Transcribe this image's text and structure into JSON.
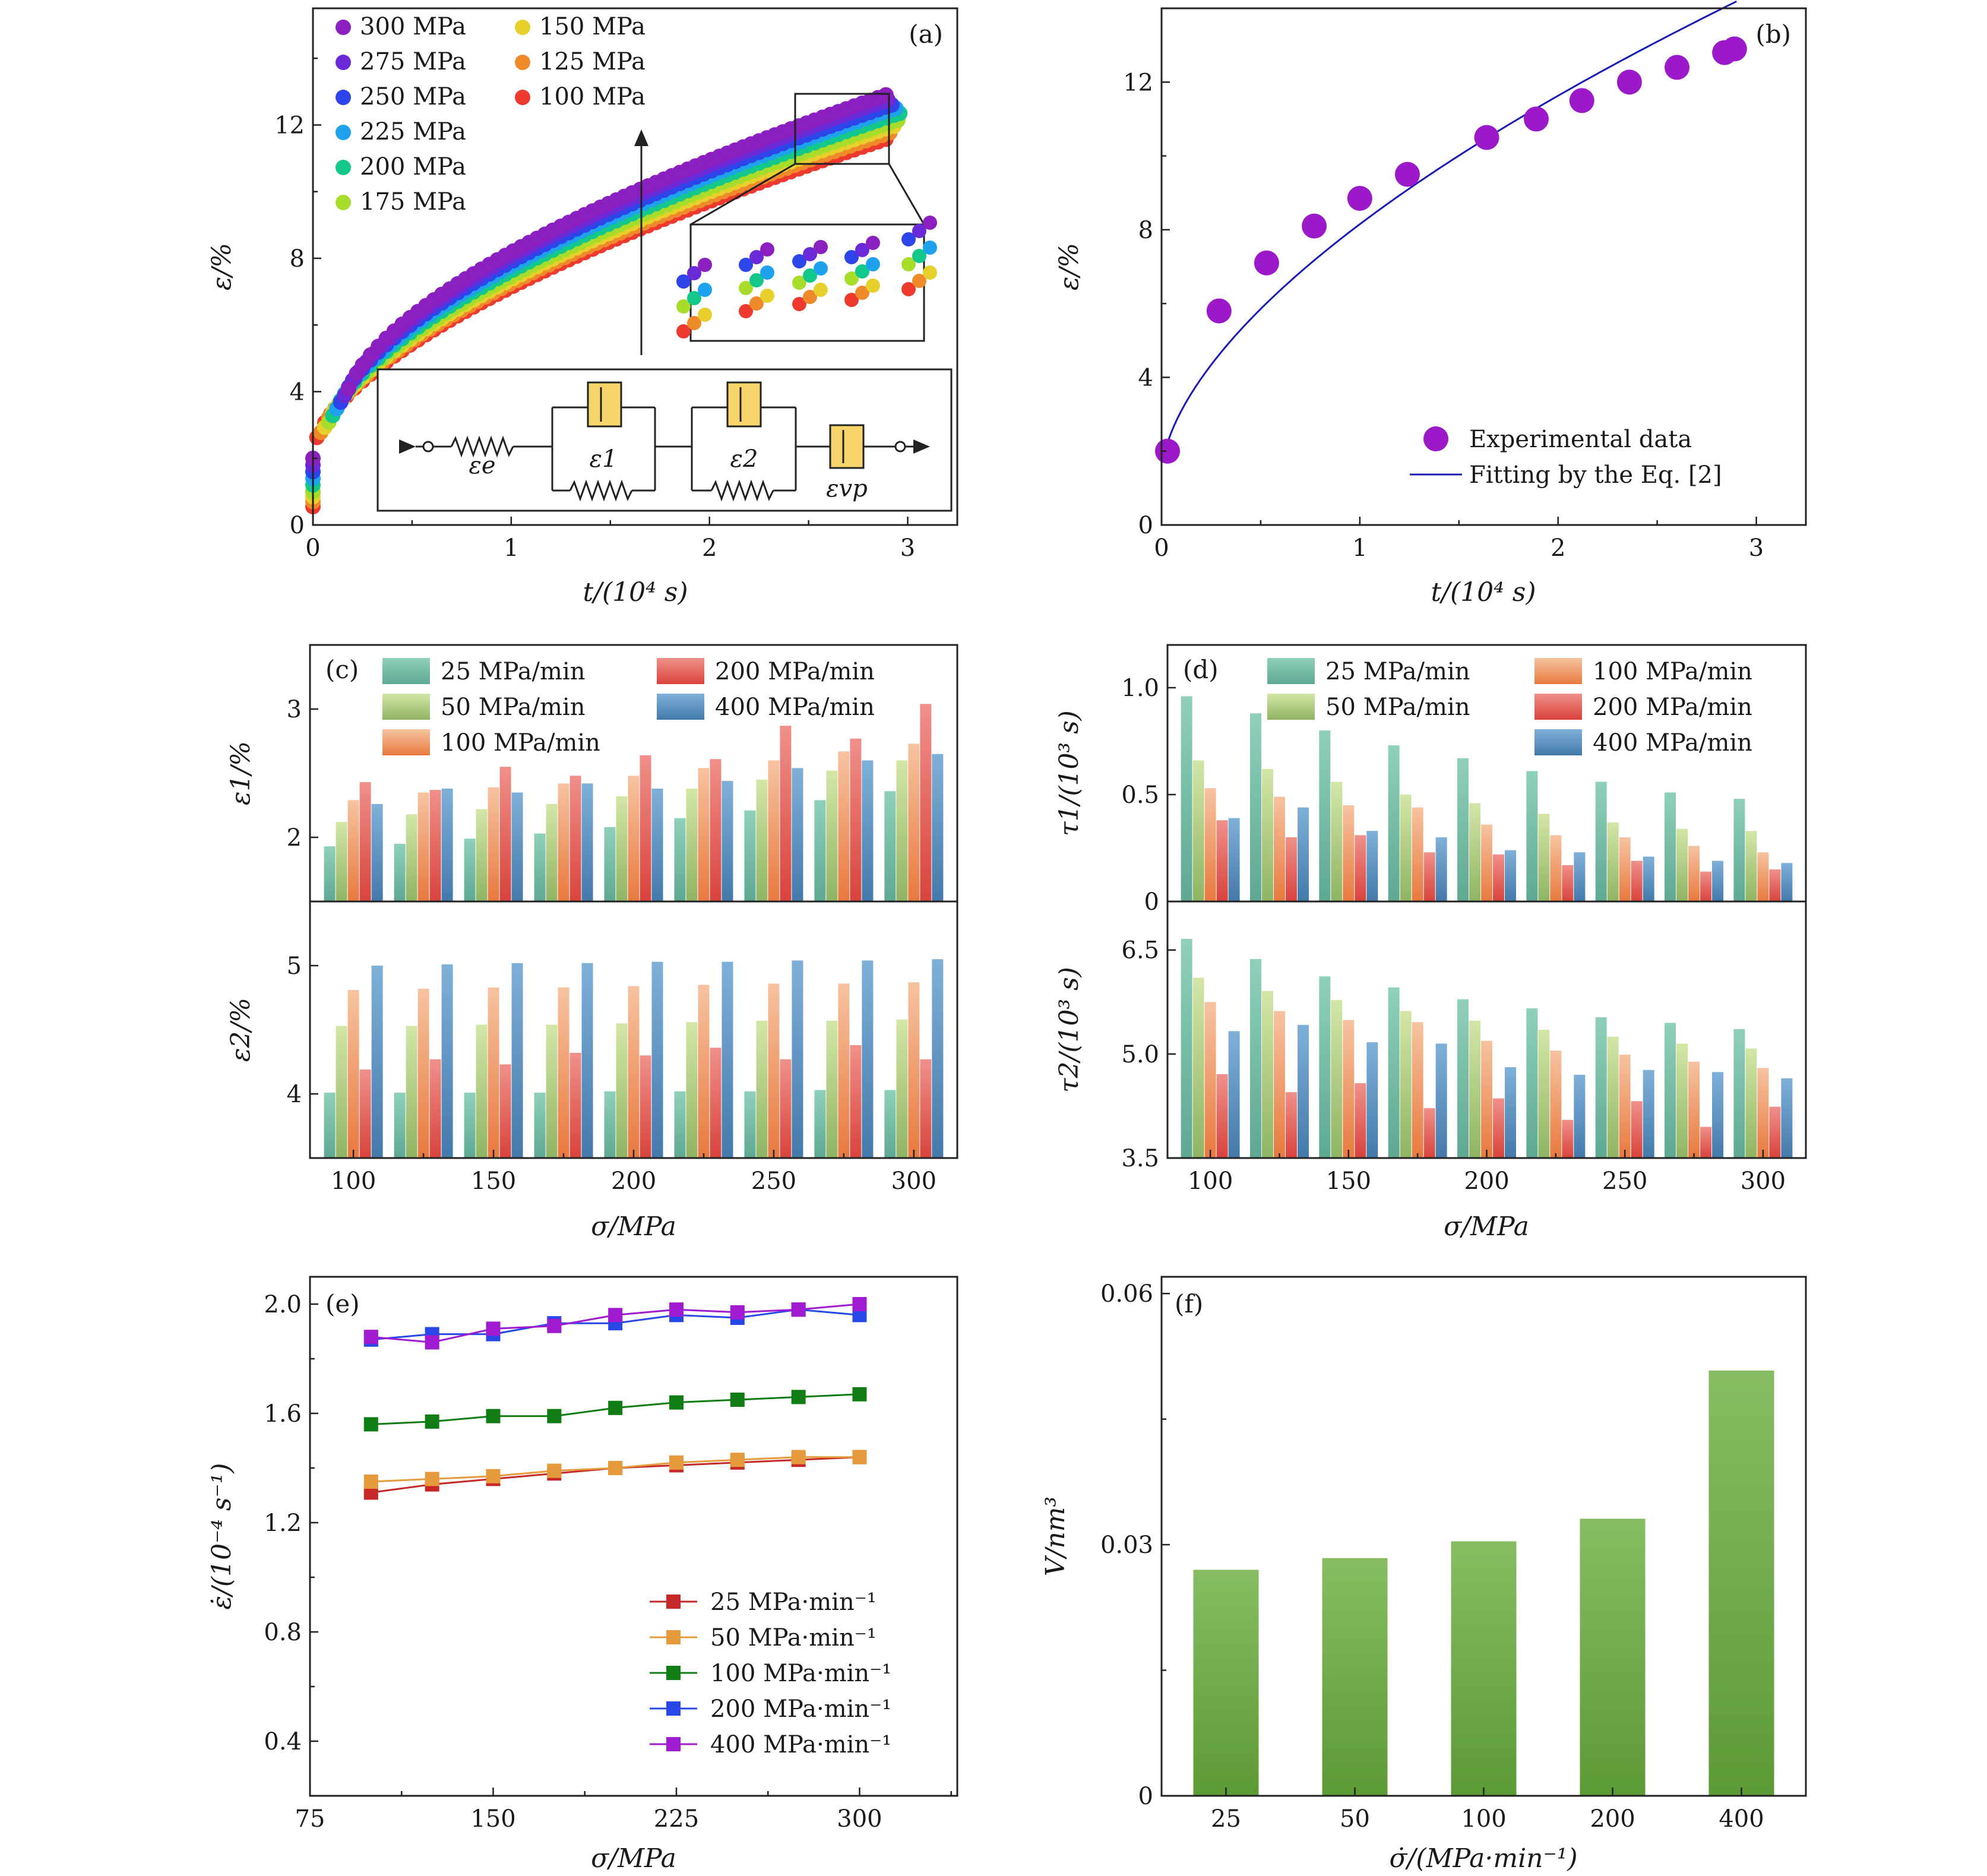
{
  "panels": {
    "a": {
      "tag": "(a)",
      "xlabel": "t/(10⁴ s)",
      "ylabel": "ε/%",
      "xticks": [
        "0",
        "1",
        "2",
        "3"
      ],
      "yticks": [
        "0",
        "4",
        "8",
        "12"
      ],
      "model": {
        "labels": [
          "εe",
          "ε1",
          "ε2",
          "εvp"
        ]
      }
    },
    "b": {
      "tag": "(b)",
      "xlabel": "t/(10⁴ s)",
      "ylabel": "ε/%",
      "xticks": [
        "0",
        "1",
        "2",
        "3"
      ],
      "yticks": [
        "0",
        "4",
        "8",
        "12"
      ],
      "legend": [
        "Experimental data",
        "Fitting by the Eq. [2]"
      ]
    },
    "c": {
      "tag": "(c)",
      "xlabel": "σ/MPa",
      "ylabel_top": "ε1/%",
      "ylabel_bottom": "ε2/%",
      "xticks": [
        "100",
        "150",
        "200",
        "250",
        "300"
      ],
      "yticks_top": [
        "2",
        "3"
      ],
      "yticks_bottom": [
        "4",
        "5"
      ]
    },
    "d": {
      "tag": "(d)",
      "xlabel": "σ/MPa",
      "ylabel_top": "τ1/(10³ s)",
      "ylabel_bottom": "τ2/(10³ s)",
      "xticks": [
        "100",
        "150",
        "200",
        "250",
        "300"
      ],
      "yticks_top": [
        "0",
        "0.5",
        "1.0"
      ],
      "yticks_bottom": [
        "3.5",
        "5.0",
        "6.5"
      ]
    },
    "e": {
      "tag": "(e)",
      "xlabel": "σ/MPa",
      "ylabel": "ε̇/(10⁻⁴ s⁻¹)",
      "xticks": [
        "75",
        "150",
        "225",
        "300"
      ],
      "yticks": [
        "0.4",
        "0.8",
        "1.2",
        "1.6",
        "2.0"
      ],
      "legend": [
        "25 MPa·min⁻¹",
        "50 MPa·min⁻¹",
        "100 MPa·min⁻¹",
        "200 MPa·min⁻¹",
        "400 MPa·min⁻¹"
      ]
    },
    "f": {
      "tag": "(f)",
      "xlabel": "σ̇/(MPa·min⁻¹)",
      "ylabel": "V/nm³",
      "yticks": [
        "0",
        "0.03",
        "0.06"
      ]
    }
  },
  "chart_data": [
    {
      "panel": "a",
      "type": "scatter",
      "title": "",
      "xlabel": "t/(10⁴ s)",
      "ylabel": "ε/%",
      "xlim": [
        0,
        3.25
      ],
      "ylim": [
        0,
        15.5
      ],
      "series": [
        {
          "name": "300 MPa",
          "color": "#8b1fc0",
          "t_end": 2.89,
          "eps_start": 2.0,
          "eps_end": 12.9
        },
        {
          "name": "275 MPa",
          "color": "#6a2ad8",
          "t_end": 2.9,
          "eps_start": 1.8,
          "eps_end": 12.75
        },
        {
          "name": "250 MPa",
          "color": "#2c44e8",
          "t_end": 2.92,
          "eps_start": 1.6,
          "eps_end": 12.6
        },
        {
          "name": "225 MPa",
          "color": "#1fa2ee",
          "t_end": 2.94,
          "eps_start": 1.4,
          "eps_end": 12.5
        },
        {
          "name": "200 MPa",
          "color": "#14c78a",
          "t_end": 2.96,
          "eps_start": 1.2,
          "eps_end": 12.35
        },
        {
          "name": "175 MPa",
          "color": "#a7dd2a",
          "t_end": 2.98,
          "eps_start": 1.0,
          "eps_end": 12.2
        },
        {
          "name": "150 MPa",
          "color": "#e8d02c",
          "t_end": 3.0,
          "eps_start": 0.85,
          "eps_end": 12.1
        },
        {
          "name": "125 MPa",
          "color": "#ee8a2a",
          "t_end": 3.03,
          "eps_start": 0.7,
          "eps_end": 12.0
        },
        {
          "name": "100 MPa",
          "color": "#ee3a2e",
          "t_end": 3.06,
          "eps_start": 0.55,
          "eps_end": 11.9
        }
      ]
    },
    {
      "panel": "b",
      "type": "scatter",
      "xlim": [
        0,
        3.25
      ],
      "ylim": [
        0,
        14
      ],
      "series": [
        {
          "name": "Experimental data",
          "color": "#9b19c9",
          "x": [
            0.03,
            0.29,
            0.53,
            0.77,
            1.0,
            1.24,
            1.64,
            1.89,
            2.12,
            2.36,
            2.6,
            2.84,
            2.89
          ],
          "y": [
            2.0,
            5.8,
            7.1,
            8.1,
            8.85,
            9.5,
            10.5,
            11.0,
            11.5,
            12.0,
            12.4,
            12.8,
            12.9
          ]
        },
        {
          "name": "Fitting by the Eq. [2]",
          "color": "#1a1ab8",
          "type": "line",
          "model": "eps = 1.4 + 6.75*t^0.6",
          "x_range": [
            0.01,
            2.9
          ]
        }
      ]
    },
    {
      "panel": "c",
      "type": "bar",
      "categories": [
        100,
        125,
        150,
        175,
        200,
        225,
        250,
        275,
        300
      ],
      "rate_labels": [
        "25 MPa/min",
        "50 MPa/min",
        "100 MPa/min",
        "200 MPa/min",
        "400 MPa/min"
      ],
      "colors": [
        [
          "#8fd0bb",
          "#5ea893"
        ],
        [
          "#d3e6a6",
          "#8fb463"
        ],
        [
          "#f6c3a0",
          "#e8793e"
        ],
        [
          "#f0908a",
          "#d8433c"
        ],
        [
          "#7fb0d8",
          "#4379ab"
        ]
      ],
      "top": {
        "ylabel": "ε1/%",
        "ylim": [
          1.5,
          3.5
        ],
        "series": [
          [
            1.93,
            1.95,
            1.99,
            2.03,
            2.08,
            2.15,
            2.21,
            2.29,
            2.36
          ],
          [
            2.12,
            2.18,
            2.22,
            2.26,
            2.32,
            2.38,
            2.45,
            2.52,
            2.6
          ],
          [
            2.29,
            2.35,
            2.39,
            2.42,
            2.48,
            2.54,
            2.6,
            2.67,
            2.73
          ],
          [
            2.43,
            2.37,
            2.55,
            2.48,
            2.64,
            2.61,
            2.87,
            2.77,
            3.04
          ],
          [
            2.26,
            2.38,
            2.35,
            2.42,
            2.38,
            2.44,
            2.54,
            2.6,
            2.65
          ]
        ]
      },
      "bottom": {
        "ylabel": "ε2/%",
        "ylim": [
          3.5,
          5.5
        ],
        "series": [
          [
            4.01,
            4.01,
            4.01,
            4.01,
            4.02,
            4.02,
            4.02,
            4.03,
            4.03
          ],
          [
            4.53,
            4.53,
            4.54,
            4.54,
            4.55,
            4.56,
            4.57,
            4.57,
            4.58
          ],
          [
            4.81,
            4.82,
            4.83,
            4.83,
            4.84,
            4.85,
            4.86,
            4.86,
            4.87
          ],
          [
            4.19,
            4.27,
            4.23,
            4.32,
            4.3,
            4.36,
            4.27,
            4.38,
            4.27
          ],
          [
            5.0,
            5.01,
            5.02,
            5.02,
            5.03,
            5.03,
            5.04,
            5.04,
            5.05
          ]
        ]
      }
    },
    {
      "panel": "d",
      "type": "bar",
      "categories": [
        100,
        125,
        150,
        175,
        200,
        225,
        250,
        275,
        300
      ],
      "rate_labels": [
        "25 MPa/min",
        "50 MPa/min",
        "100 MPa/min",
        "200 MPa/min",
        "400 MPa/min"
      ],
      "colors": [
        [
          "#8fd0bb",
          "#5ea893"
        ],
        [
          "#d3e6a6",
          "#8fb463"
        ],
        [
          "#f6c3a0",
          "#e8793e"
        ],
        [
          "#f0908a",
          "#d8433c"
        ],
        [
          "#7fb0d8",
          "#4379ab"
        ]
      ],
      "top": {
        "ylabel": "τ1/(10³ s)",
        "ylim": [
          0,
          1.2
        ],
        "series": [
          [
            0.96,
            0.88,
            0.8,
            0.73,
            0.67,
            0.61,
            0.56,
            0.51,
            0.48
          ],
          [
            0.66,
            0.62,
            0.56,
            0.5,
            0.46,
            0.41,
            0.37,
            0.34,
            0.33
          ],
          [
            0.53,
            0.49,
            0.45,
            0.44,
            0.36,
            0.31,
            0.3,
            0.26,
            0.23
          ],
          [
            0.38,
            0.3,
            0.31,
            0.23,
            0.22,
            0.17,
            0.19,
            0.14,
            0.15
          ],
          [
            0.39,
            0.44,
            0.33,
            0.3,
            0.24,
            0.23,
            0.21,
            0.19,
            0.18
          ]
        ]
      },
      "bottom": {
        "ylabel": "τ2/(10³ s)",
        "ylim": [
          3.5,
          7.2
        ],
        "series": [
          [
            6.66,
            6.37,
            6.12,
            5.96,
            5.79,
            5.66,
            5.53,
            5.45,
            5.36
          ],
          [
            6.1,
            5.91,
            5.78,
            5.62,
            5.48,
            5.35,
            5.25,
            5.15,
            5.08
          ],
          [
            5.75,
            5.62,
            5.49,
            5.46,
            5.19,
            5.05,
            4.99,
            4.89,
            4.8
          ],
          [
            4.71,
            4.45,
            4.58,
            4.22,
            4.36,
            4.05,
            4.32,
            3.95,
            4.24
          ],
          [
            5.33,
            5.42,
            5.17,
            5.15,
            4.81,
            4.7,
            4.77,
            4.74,
            4.65
          ]
        ]
      }
    },
    {
      "panel": "e",
      "type": "line",
      "xlabel": "σ/MPa",
      "ylabel": "ε̇/(10⁻⁴ s⁻¹)",
      "xlim": [
        75,
        340
      ],
      "ylim": [
        0.2,
        2.1
      ],
      "x": [
        100,
        125,
        150,
        175,
        200,
        225,
        250,
        275,
        300
      ],
      "series": [
        {
          "name": "25 MPa·min⁻¹",
          "color": "#c62828",
          "values": [
            1.31,
            1.34,
            1.36,
            1.38,
            1.4,
            1.41,
            1.42,
            1.43,
            1.44
          ]
        },
        {
          "name": "50 MPa·min⁻¹",
          "color": "#e59b3b",
          "values": [
            1.35,
            1.36,
            1.37,
            1.39,
            1.4,
            1.42,
            1.43,
            1.44,
            1.44
          ]
        },
        {
          "name": "100 MPa·min⁻¹",
          "color": "#0f7d14",
          "values": [
            1.56,
            1.57,
            1.59,
            1.59,
            1.62,
            1.64,
            1.65,
            1.66,
            1.67
          ]
        },
        {
          "name": "200 MPa·min⁻¹",
          "color": "#2748e6",
          "values": [
            1.87,
            1.89,
            1.89,
            1.93,
            1.93,
            1.96,
            1.95,
            1.98,
            1.96
          ]
        },
        {
          "name": "400 MPa·min⁻¹",
          "color": "#a01ad0",
          "values": [
            1.88,
            1.86,
            1.91,
            1.92,
            1.96,
            1.98,
            1.97,
            1.98,
            2.0
          ]
        }
      ]
    },
    {
      "panel": "f",
      "type": "bar",
      "xlabel": "σ̇/(MPa·min⁻¹)",
      "ylabel": "V/nm³",
      "ylim": [
        0,
        0.062
      ],
      "categories": [
        "25",
        "50",
        "100",
        "200",
        "400"
      ],
      "values": [
        0.027,
        0.0284,
        0.0304,
        0.0331,
        0.0508
      ],
      "color": "#6aa84f"
    }
  ]
}
